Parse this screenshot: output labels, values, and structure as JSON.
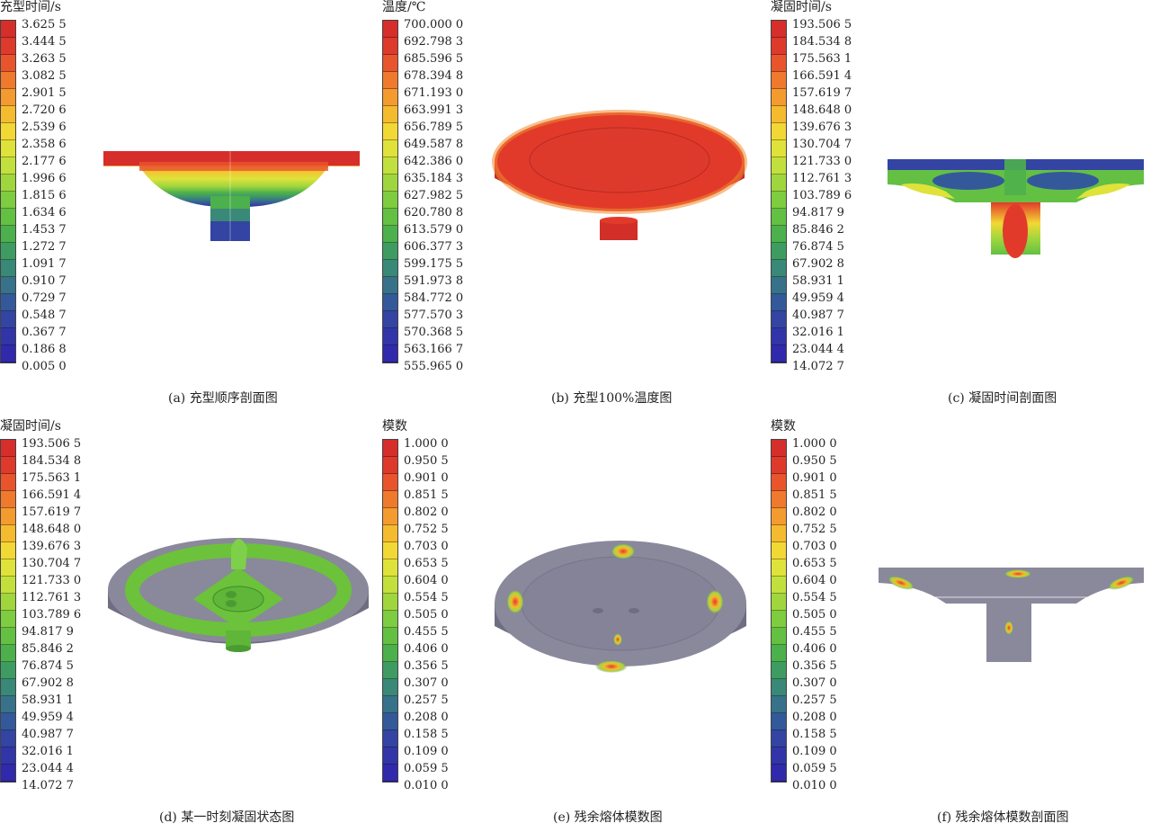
{
  "colors": {
    "legend_bands": [
      "#d62e2a",
      "#de3a2c",
      "#e8552d",
      "#ef7a2d",
      "#f39b2e",
      "#f5bb2f",
      "#f2d834",
      "#dfe23a",
      "#c2e03d",
      "#9fd63e",
      "#7ecc40",
      "#63c043",
      "#4cb04c",
      "#3e9c63",
      "#3a8877",
      "#37728a",
      "#34599a",
      "#3344a2",
      "#3235a8",
      "#3129ab"
    ],
    "metal_gray": "#7f7d91",
    "accent_green": "#6cc23b",
    "accent_red": "#e23a2a"
  },
  "panels": [
    {
      "id": "a",
      "legend_title": "充型时间/s",
      "ticks": [
        "3.625 5",
        "3.444 5",
        "3.263 5",
        "3.082 5",
        "2.901 5",
        "2.720 6",
        "2.539 6",
        "2.358 6",
        "2.177 6",
        "1.996 6",
        "1.815 6",
        "1.634 6",
        "1.453 7",
        "1.272 7",
        "1.091 7",
        "0.910 7",
        "0.729 7",
        "0.548 7",
        "0.367 7",
        "0.186 8",
        "0.005 0"
      ],
      "caption": "(a) 充型顺序剖面图"
    },
    {
      "id": "b",
      "legend_title": "温度/℃",
      "ticks": [
        "700.000 0",
        "692.798 3",
        "685.596 5",
        "678.394 8",
        "671.193 0",
        "663.991 3",
        "656.789 5",
        "649.587 8",
        "642.386 0",
        "635.184 3",
        "627.982 5",
        "620.780 8",
        "613.579 0",
        "606.377 3",
        "599.175 5",
        "591.973 8",
        "584.772 0",
        "577.570 3",
        "570.368 5",
        "563.166 7",
        "555.965 0"
      ],
      "caption": "(b) 充型100%温度图"
    },
    {
      "id": "c",
      "legend_title": "凝固时间/s",
      "ticks": [
        "193.506 5",
        "184.534 8",
        "175.563 1",
        "166.591 4",
        "157.619 7",
        "148.648 0",
        "139.676 3",
        "130.704 7",
        "121.733 0",
        "112.761 3",
        "103.789 6",
        "94.817 9",
        "85.846 2",
        "76.874 5",
        "67.902 8",
        "58.931 1",
        "49.959 4",
        "40.987 7",
        "32.016 1",
        "23.044 4",
        "14.072 7"
      ],
      "caption": "(c) 凝固时间剖面图"
    },
    {
      "id": "d",
      "legend_title": "凝固时间/s",
      "ticks": [
        "193.506 5",
        "184.534 8",
        "175.563 1",
        "166.591 4",
        "157.619 7",
        "148.648 0",
        "139.676 3",
        "130.704 7",
        "121.733 0",
        "112.761 3",
        "103.789 6",
        "94.817 9",
        "85.846 2",
        "76.874 5",
        "67.902 8",
        "58.931 1",
        "49.959 4",
        "40.987 7",
        "32.016 1",
        "23.044 4",
        "14.072 7"
      ],
      "caption": "(d) 某一时刻凝固状态图"
    },
    {
      "id": "e",
      "legend_title": "模数",
      "ticks": [
        "1.000 0",
        "0.950 5",
        "0.901 0",
        "0.851 5",
        "0.802 0",
        "0.752 5",
        "0.703 0",
        "0.653 5",
        "0.604 0",
        "0.554 5",
        "0.505 0",
        "0.455 5",
        "0.406 0",
        "0.356 5",
        "0.307 0",
        "0.257 5",
        "0.208 0",
        "0.158 5",
        "0.109 0",
        "0.059 5",
        "0.010 0"
      ],
      "caption": "(e) 残余熔体模数图"
    },
    {
      "id": "f",
      "legend_title": "模数",
      "ticks": [
        "1.000 0",
        "0.950 5",
        "0.901 0",
        "0.851 5",
        "0.802 0",
        "0.752 5",
        "0.703 0",
        "0.653 5",
        "0.604 0",
        "0.554 5",
        "0.505 0",
        "0.455 5",
        "0.406 0",
        "0.356 5",
        "0.307 0",
        "0.257 5",
        "0.208 0",
        "0.158 5",
        "0.109 0",
        "0.059 5",
        "0.010 0"
      ],
      "caption": "(f) 残余熔体模数剖面图"
    }
  ]
}
